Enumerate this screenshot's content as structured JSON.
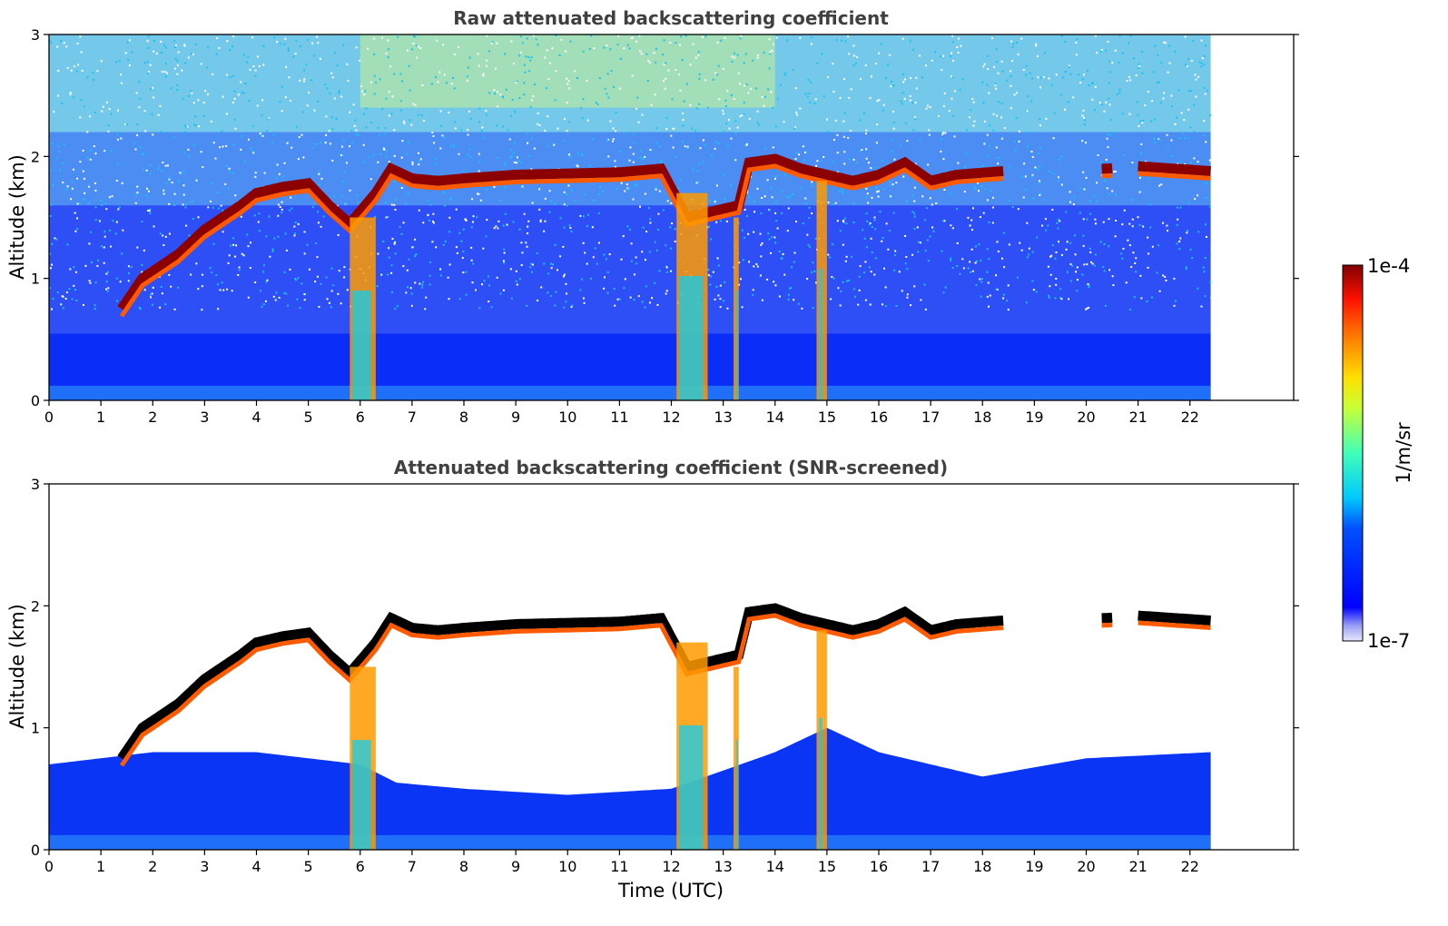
{
  "chart_data": [
    {
      "type": "heatmap",
      "title": "Raw attenuated backscattering coefficient",
      "xlabel": "",
      "ylabel": "Altitude (km)",
      "xlim": [
        0,
        24
      ],
      "ylim": [
        0,
        3
      ],
      "xticks": [
        "0",
        "1",
        "2",
        "3",
        "4",
        "5",
        "6",
        "7",
        "8",
        "9",
        "10",
        "11",
        "12",
        "13",
        "14",
        "15",
        "16",
        "17",
        "18",
        "19",
        "20",
        "21",
        "22"
      ],
      "yticks": [
        "0",
        "1",
        "2",
        "3"
      ],
      "data_extent_hours": [
        0,
        22.4
      ],
      "screened": false,
      "cloud_top_altitude_km": [
        [
          1.4,
          0.75
        ],
        [
          1.8,
          1.0
        ],
        [
          2.5,
          1.2
        ],
        [
          3.0,
          1.4
        ],
        [
          3.7,
          1.6
        ],
        [
          4.0,
          1.7
        ],
        [
          4.5,
          1.75
        ],
        [
          5.0,
          1.78
        ],
        [
          5.4,
          1.6
        ],
        [
          5.8,
          1.45
        ],
        [
          6.3,
          1.7
        ],
        [
          6.6,
          1.9
        ],
        [
          7.0,
          1.82
        ],
        [
          7.5,
          1.8
        ],
        [
          8.0,
          1.82
        ],
        [
          9.0,
          1.85
        ],
        [
          10.0,
          1.86
        ],
        [
          11.0,
          1.87
        ],
        [
          11.8,
          1.9
        ],
        [
          12.3,
          1.5
        ],
        [
          12.8,
          1.55
        ],
        [
          13.3,
          1.6
        ],
        [
          13.5,
          1.95
        ],
        [
          14.0,
          1.98
        ],
        [
          14.5,
          1.9
        ],
        [
          15.0,
          1.85
        ],
        [
          15.5,
          1.8
        ],
        [
          16.0,
          1.85
        ],
        [
          16.5,
          1.95
        ],
        [
          17.0,
          1.8
        ],
        [
          17.5,
          1.85
        ],
        [
          18.4,
          1.88
        ],
        [
          20.4,
          1.9
        ],
        [
          21.0,
          1.92
        ],
        [
          22.4,
          1.88
        ]
      ]
    },
    {
      "type": "heatmap",
      "title": "Attenuated backscattering coefficient (SNR-screened)",
      "xlabel": "Time (UTC)",
      "ylabel": "Altitude (km)",
      "xlim": [
        0,
        24
      ],
      "ylim": [
        0,
        3
      ],
      "xticks": [
        "0",
        "1",
        "2",
        "3",
        "4",
        "5",
        "6",
        "7",
        "8",
        "9",
        "10",
        "11",
        "12",
        "13",
        "14",
        "15",
        "16",
        "17",
        "18",
        "19",
        "20",
        "21",
        "22"
      ],
      "yticks": [
        "0",
        "1",
        "2",
        "3"
      ],
      "data_extent_hours": [
        0,
        22.4
      ],
      "screened": true,
      "boundary_layer_top_km": [
        [
          0.0,
          0.7
        ],
        [
          2.0,
          0.8
        ],
        [
          4.0,
          0.8
        ],
        [
          6.0,
          0.7
        ],
        [
          6.7,
          0.55
        ],
        [
          8.0,
          0.5
        ],
        [
          10.0,
          0.45
        ],
        [
          12.0,
          0.5
        ],
        [
          14.0,
          0.8
        ],
        [
          15.0,
          1.0
        ],
        [
          16.0,
          0.8
        ],
        [
          17.0,
          0.7
        ],
        [
          18.0,
          0.6
        ],
        [
          20.0,
          0.75
        ],
        [
          22.4,
          0.8
        ]
      ]
    }
  ],
  "colorbar": {
    "label": "1/m/sr",
    "max_label": "1e-4",
    "min_label": "1e-7",
    "scale": "log",
    "range": [
      1e-07,
      0.0001
    ],
    "colormap": "jet",
    "under_color": "#ffffff",
    "over_color": "#000000"
  }
}
